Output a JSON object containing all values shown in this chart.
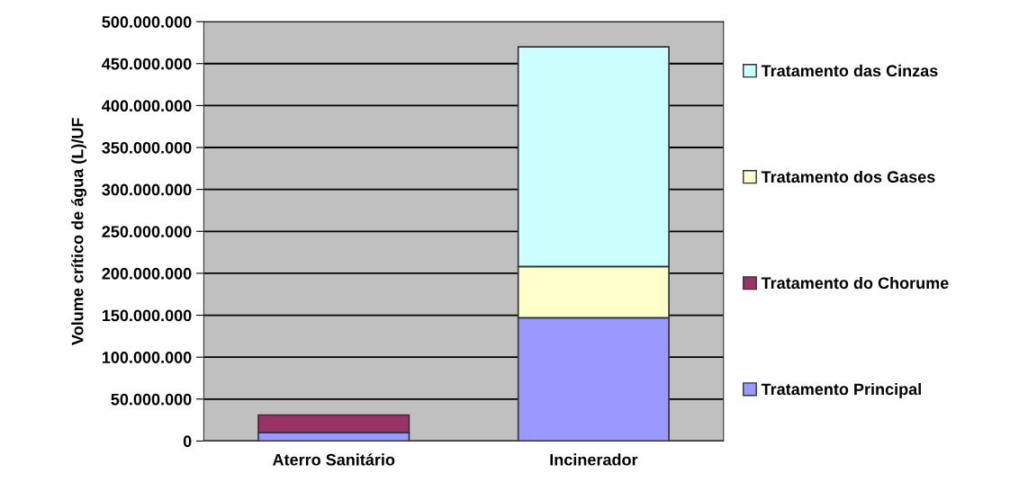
{
  "chart_data": {
    "type": "bar",
    "stacked": true,
    "ylabel": "Volume crítico de água (L)/UF",
    "categories": [
      "Aterro Sanitário",
      "Incinerador"
    ],
    "series": [
      {
        "name": "Tratamento Principal",
        "color": "#9999ff",
        "values": [
          10000000,
          147000000
        ]
      },
      {
        "name": "Tratamento do Chorume",
        "color": "#993366",
        "values": [
          21000000,
          null
        ]
      },
      {
        "name": "Tratamento dos Gases",
        "color": "#ffffcc",
        "values": [
          null,
          61000000
        ]
      },
      {
        "name": "Tratamento das Cinzas",
        "color": "#ccffff",
        "values": [
          null,
          262000000
        ]
      }
    ],
    "ylim": [
      0,
      500000000
    ],
    "yticks": [
      {
        "value": 0,
        "label": "0"
      },
      {
        "value": 50000000,
        "label": "50.000.000"
      },
      {
        "value": 100000000,
        "label": "100.000.000"
      },
      {
        "value": 150000000,
        "label": "150.000.000"
      },
      {
        "value": 200000000,
        "label": "200.000.000"
      },
      {
        "value": 250000000,
        "label": "250.000.000"
      },
      {
        "value": 300000000,
        "label": "300.000.000"
      },
      {
        "value": 350000000,
        "label": "350.000.000"
      },
      {
        "value": 400000000,
        "label": "400.000.000"
      },
      {
        "value": 450000000,
        "label": "450.000.000"
      },
      {
        "value": 500000000,
        "label": "500.000.000"
      }
    ],
    "grid": "y",
    "legend": "right"
  }
}
